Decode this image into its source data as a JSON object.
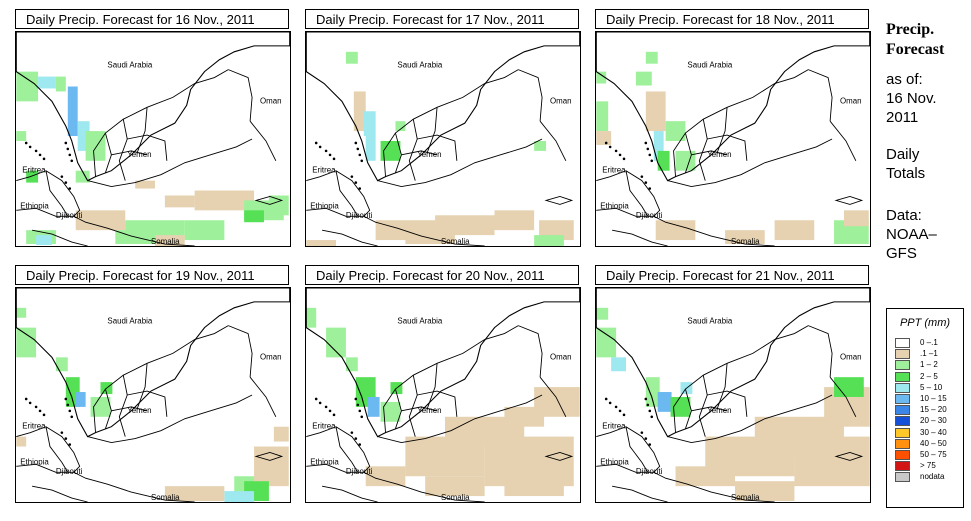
{
  "panels": [
    {
      "title": "Daily Precip. Forecast for  16 Nov., 2011"
    },
    {
      "title": "Daily Precip. Forecast for  17 Nov., 2011"
    },
    {
      "title": "Daily Precip. Forecast for  18 Nov., 2011"
    },
    {
      "title": "Daily Precip. Forecast for  19 Nov., 2011"
    },
    {
      "title": "Daily Precip. Forecast for  20 Nov., 2011"
    },
    {
      "title": "Daily Precip. Forecast for  21 Nov., 2011"
    }
  ],
  "map_labels": {
    "saudi": "Saudi Arabia",
    "oman": "Oman",
    "yemen": "Yemen",
    "eritrea": "Eritrea",
    "ethiopia": "Ethiopia",
    "djibouti": "Djibouti",
    "somalia": "Somalia"
  },
  "sidebar": {
    "title_line1": "Precip.",
    "title_line2": "Forecast",
    "asof_line1": "as of:",
    "asof_line2": "16 Nov.",
    "asof_line3": "2011",
    "daily_line1": "Daily",
    "daily_line2": "Totals",
    "data_line1": "Data:",
    "data_line2": "NOAA–",
    "data_line3": "GFS"
  },
  "legend": {
    "title": "PPT (mm)",
    "items": [
      {
        "label": "0 –.1",
        "color": "#ffffff"
      },
      {
        "label": ".1 –1",
        "color": "#e6d2b0"
      },
      {
        "label": "1 – 2",
        "color": "#9ef09a"
      },
      {
        "label": "2 – 5",
        "color": "#55e055"
      },
      {
        "label": "5 – 10",
        "color": "#9ee8f0"
      },
      {
        "label": "10 – 15",
        "color": "#6cb8f0"
      },
      {
        "label": "15 – 20",
        "color": "#3c86e8"
      },
      {
        "label": "20 – 30",
        "color": "#1450d8"
      },
      {
        "label": "30 – 40",
        "color": "#ffc828"
      },
      {
        "label": "40 – 50",
        "color": "#ff9010"
      },
      {
        "label": "50 – 75",
        "color": "#ff5000"
      },
      {
        "label": "> 75",
        "color": "#d21414"
      },
      {
        "label": "nodata",
        "color": "#c8c8c8"
      }
    ]
  }
}
